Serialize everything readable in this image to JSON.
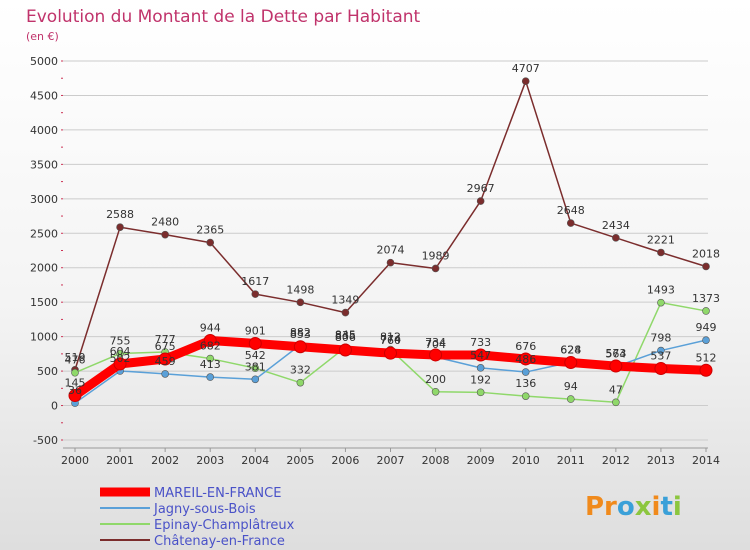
{
  "header": {
    "title": "Evolution du Montant de la Dette par Habitant",
    "subtitle": "(en €)"
  },
  "logo": {
    "text": "Proxiti"
  },
  "colors": {
    "title": "#c0336b",
    "grid": "#cccccc",
    "axis_ticks": "#cc3355"
  },
  "chart_data": {
    "type": "line",
    "title": "Evolution du Montant de la Dette par Habitant",
    "subtitle": "(en €)",
    "x": [
      "2000",
      "2001",
      "2002",
      "2003",
      "2004",
      "2005",
      "2006",
      "2007",
      "2008",
      "2009",
      "2010",
      "2011",
      "2012",
      "2013",
      "2014"
    ],
    "ylim": [
      -500,
      5000
    ],
    "yticks": [
      "-500",
      "0",
      "500",
      "1000",
      "1500",
      "2000",
      "2500",
      "3000",
      "3500",
      "4000",
      "4500",
      "5000"
    ],
    "grid": "horizontal",
    "legend_position": "bottom-left",
    "series": [
      {
        "name": "MAREIL-EN-FRANCE",
        "color": "#ff0000",
        "values": [
          145,
          604,
          675,
          944,
          901,
          853,
          806,
          760,
          734,
          733,
          676,
          624,
          573,
          537,
          512
        ],
        "labels": [
          "145",
          "604",
          "675",
          "944",
          "901",
          "853",
          "806",
          "760",
          "734",
          "733",
          "676",
          "624",
          "573",
          "537",
          "512"
        ]
      },
      {
        "name": "Jagny-sous-Bois",
        "color": "#5aa0d8",
        "values": [
          36,
          502,
          459,
          413,
          381,
          882,
          835,
          774,
          704,
          547,
          486,
          628,
          564,
          798,
          949
        ],
        "labels": [
          "36",
          "502",
          "459",
          "413",
          "381",
          "882",
          "835",
          "774",
          "704",
          "547",
          "486",
          "628",
          "564",
          "798",
          "949"
        ]
      },
      {
        "name": "Epinay-Champlâtreux",
        "color": "#8fd86a",
        "values": [
          476,
          755,
          777,
          682,
          542,
          332,
          845,
          812,
          200,
          192,
          136,
          94,
          47,
          1493,
          1373
        ],
        "labels": [
          "476",
          "755",
          "777",
          "682",
          "542",
          "332",
          "845",
          "812",
          "200",
          "192",
          "136",
          "94",
          "47",
          "1493",
          "1373"
        ]
      },
      {
        "name": "Châtenay-en-France",
        "color": "#7b2d2d",
        "values": [
          519,
          2588,
          2480,
          2365,
          1617,
          1498,
          1349,
          2074,
          1989,
          2967,
          4707,
          2648,
          2434,
          2221,
          2018
        ],
        "labels": [
          "519",
          "2588",
          "2480",
          "2365",
          "1617",
          "1498",
          "1349",
          "2074",
          "1989",
          "2967",
          "4707",
          "2648",
          "2434",
          "2221",
          "2018"
        ]
      }
    ]
  }
}
